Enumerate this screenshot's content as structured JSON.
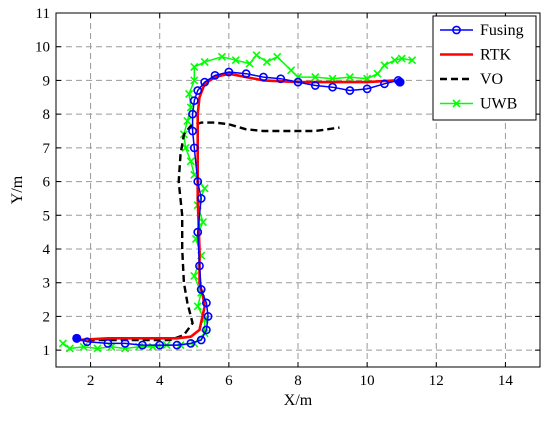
{
  "chart_data": {
    "type": "line",
    "xlabel": "X/m",
    "ylabel": "Y/m",
    "xlim": [
      1,
      15
    ],
    "ylim": [
      0.5,
      11
    ],
    "xticks": [
      2,
      4,
      6,
      8,
      10,
      12,
      14
    ],
    "yticks": [
      1,
      2,
      3,
      4,
      5,
      6,
      7,
      8,
      9,
      10,
      11
    ],
    "grid": true,
    "legend_position": "top-right",
    "series": [
      {
        "name": "Fusing",
        "color": "#0000ff",
        "marker": "circle",
        "line": "solid",
        "points": [
          [
            1.6,
            1.35
          ],
          [
            1.9,
            1.25
          ],
          [
            2.5,
            1.2
          ],
          [
            3.0,
            1.2
          ],
          [
            3.5,
            1.15
          ],
          [
            4.0,
            1.15
          ],
          [
            4.5,
            1.15
          ],
          [
            4.9,
            1.2
          ],
          [
            5.2,
            1.3
          ],
          [
            5.35,
            1.6
          ],
          [
            5.4,
            2.0
          ],
          [
            5.35,
            2.4
          ],
          [
            5.2,
            2.8
          ],
          [
            5.15,
            3.5
          ],
          [
            5.1,
            4.5
          ],
          [
            5.2,
            5.5
          ],
          [
            5.1,
            6.0
          ],
          [
            5.0,
            7.0
          ],
          [
            4.95,
            7.5
          ],
          [
            4.95,
            8.0
          ],
          [
            5.0,
            8.4
          ],
          [
            5.1,
            8.7
          ],
          [
            5.3,
            8.95
          ],
          [
            5.6,
            9.15
          ],
          [
            6.0,
            9.25
          ],
          [
            6.5,
            9.2
          ],
          [
            7.0,
            9.1
          ],
          [
            7.5,
            9.05
          ],
          [
            8.0,
            8.95
          ],
          [
            8.5,
            8.85
          ],
          [
            9.0,
            8.8
          ],
          [
            9.5,
            8.7
          ],
          [
            10.0,
            8.75
          ],
          [
            10.5,
            8.9
          ],
          [
            10.9,
            9.0
          ],
          [
            10.95,
            8.95
          ]
        ]
      },
      {
        "name": "RTK",
        "color": "#ff0000",
        "marker": "none",
        "line": "solid",
        "points": [
          [
            1.6,
            1.3
          ],
          [
            2.5,
            1.35
          ],
          [
            3.5,
            1.35
          ],
          [
            4.5,
            1.35
          ],
          [
            4.9,
            1.4
          ],
          [
            5.15,
            1.6
          ],
          [
            5.3,
            2.3
          ],
          [
            5.25,
            2.6
          ],
          [
            5.15,
            3.0
          ],
          [
            5.15,
            4.0
          ],
          [
            5.1,
            5.5
          ],
          [
            5.1,
            6.5
          ],
          [
            5.1,
            8.0
          ],
          [
            5.15,
            8.5
          ],
          [
            5.3,
            8.9
          ],
          [
            5.6,
            9.1
          ],
          [
            6.0,
            9.2
          ],
          [
            7.0,
            9.0
          ],
          [
            8.0,
            8.95
          ],
          [
            9.0,
            8.95
          ],
          [
            10.0,
            8.95
          ],
          [
            10.8,
            9.0
          ]
        ]
      },
      {
        "name": "VO",
        "color": "#000000",
        "marker": "none",
        "line": "dashed",
        "points": [
          [
            1.6,
            1.3
          ],
          [
            2.5,
            1.3
          ],
          [
            3.5,
            1.3
          ],
          [
            4.3,
            1.3
          ],
          [
            4.7,
            1.45
          ],
          [
            4.95,
            1.8
          ],
          [
            4.8,
            2.4
          ],
          [
            4.7,
            3.0
          ],
          [
            4.65,
            4.0
          ],
          [
            4.65,
            5.0
          ],
          [
            4.55,
            6.0
          ],
          [
            4.6,
            6.8
          ],
          [
            4.7,
            7.4
          ],
          [
            4.9,
            7.65
          ],
          [
            5.2,
            7.75
          ],
          [
            5.6,
            7.75
          ],
          [
            6.0,
            7.7
          ],
          [
            6.5,
            7.55
          ],
          [
            7.0,
            7.5
          ],
          [
            8.0,
            7.5
          ],
          [
            8.5,
            7.5
          ],
          [
            9.2,
            7.6
          ]
        ]
      },
      {
        "name": "UWB",
        "color": "#00ff00",
        "marker": "x",
        "line": "solid",
        "points": [
          [
            1.2,
            1.2
          ],
          [
            1.4,
            1.05
          ],
          [
            1.8,
            1.1
          ],
          [
            2.2,
            1.05
          ],
          [
            2.6,
            1.1
          ],
          [
            3.0,
            1.05
          ],
          [
            3.4,
            1.1
          ],
          [
            3.8,
            1.1
          ],
          [
            4.2,
            1.15
          ],
          [
            4.6,
            1.15
          ],
          [
            5.0,
            1.2
          ],
          [
            5.3,
            1.5
          ],
          [
            5.3,
            1.9
          ],
          [
            5.1,
            2.3
          ],
          [
            5.2,
            2.7
          ],
          [
            5.0,
            3.2
          ],
          [
            5.2,
            3.8
          ],
          [
            5.05,
            4.3
          ],
          [
            5.25,
            4.8
          ],
          [
            5.1,
            5.3
          ],
          [
            5.3,
            5.8
          ],
          [
            5.0,
            6.2
          ],
          [
            4.9,
            6.6
          ],
          [
            4.75,
            7.0
          ],
          [
            4.7,
            7.4
          ],
          [
            4.8,
            7.8
          ],
          [
            4.9,
            8.2
          ],
          [
            4.85,
            8.6
          ],
          [
            5.0,
            9.0
          ],
          [
            5.0,
            9.4
          ],
          [
            5.3,
            9.55
          ],
          [
            5.8,
            9.7
          ],
          [
            6.2,
            9.6
          ],
          [
            6.6,
            9.5
          ],
          [
            6.8,
            9.75
          ],
          [
            7.1,
            9.55
          ],
          [
            7.4,
            9.7
          ],
          [
            7.8,
            9.3
          ],
          [
            8.0,
            9.1
          ],
          [
            8.5,
            9.1
          ],
          [
            9.0,
            9.05
          ],
          [
            9.5,
            9.1
          ],
          [
            10.0,
            9.05
          ],
          [
            10.3,
            9.2
          ],
          [
            10.5,
            9.45
          ],
          [
            10.8,
            9.6
          ],
          [
            11.0,
            9.65
          ],
          [
            11.3,
            9.6
          ]
        ]
      }
    ]
  }
}
